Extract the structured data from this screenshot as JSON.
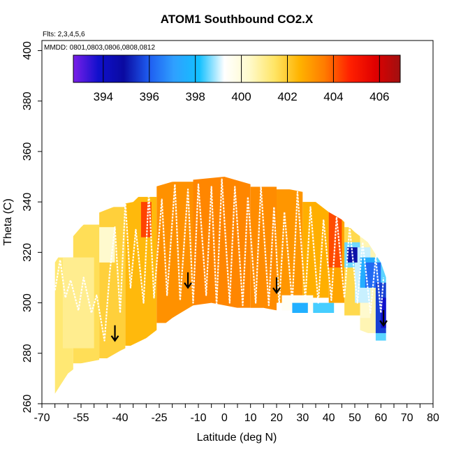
{
  "chart_data": {
    "type": "heatmap",
    "title": "ATOM1 Southbound CO2.X",
    "flights_label": "Flts: 2,3,4,5,6",
    "dates_label": "MMDD: 0801,0803,0806,0808,0812",
    "xlabel": "Latitude (deg N)",
    "ylabel": "Theta (C)",
    "xlim": [
      -70,
      80
    ],
    "ylim": [
      260,
      404
    ],
    "x_tick_labels": [
      "-70",
      "-55",
      "-40",
      "-25",
      "-10",
      "0",
      "10",
      "20",
      "30",
      "40",
      "50",
      "60",
      "70",
      "80"
    ],
    "y_tick_labels": [
      "260",
      "280",
      "300",
      "320",
      "340",
      "360",
      "380",
      "400"
    ],
    "colorbar": {
      "range": [
        392.7,
        406.9
      ],
      "tick_labels": [
        "394",
        "396",
        "398",
        "400",
        "402",
        "404",
        "406"
      ],
      "colors": [
        "#7a1fe8",
        "#1010cc",
        "#0a0aa0",
        "#1e5cf0",
        "#2fa0ff",
        "#12c0ff",
        "#ffffff",
        "#fffacc",
        "#ffe566",
        "#ffb300",
        "#ff7b00",
        "#ff2000",
        "#e00000",
        "#a01010"
      ]
    },
    "field_outline": {
      "top": [
        [
          -65,
          316
        ],
        [
          -60,
          324
        ],
        [
          -55,
          330
        ],
        [
          -50,
          335
        ],
        [
          -45,
          337
        ],
        [
          -40,
          339
        ],
        [
          -35,
          340
        ],
        [
          -30,
          345
        ],
        [
          -20,
          348
        ],
        [
          -10,
          349
        ],
        [
          0,
          350
        ],
        [
          10,
          347
        ],
        [
          20,
          346
        ],
        [
          30,
          344
        ],
        [
          40,
          336
        ],
        [
          45,
          333
        ],
        [
          50,
          328
        ],
        [
          55,
          324
        ],
        [
          60,
          316
        ],
        [
          62,
          310
        ]
      ],
      "bottom": [
        [
          -65,
          264
        ],
        [
          -60,
          272
        ],
        [
          -55,
          276
        ],
        [
          -45,
          278
        ],
        [
          -40,
          281
        ],
        [
          -30,
          286
        ],
        [
          -20,
          294
        ],
        [
          -12,
          299
        ],
        [
          -5,
          300
        ],
        [
          5,
          298
        ],
        [
          15,
          298
        ],
        [
          20,
          297
        ],
        [
          25,
          296
        ],
        [
          30,
          294
        ],
        [
          40,
          292
        ],
        [
          50,
          290
        ],
        [
          55,
          288
        ],
        [
          58,
          285
        ],
        [
          62,
          285
        ]
      ]
    },
    "cells": [
      {
        "lat": [
          -66,
          -58
        ],
        "theta": [
          264,
          318
        ],
        "value": 401.3
      },
      {
        "lat": [
          -58,
          -48
        ],
        "theta": [
          276,
          331
        ],
        "value": 401.6
      },
      {
        "lat": [
          -48,
          -38
        ],
        "theta": [
          278,
          338
        ],
        "value": 401.9
      },
      {
        "lat": [
          -38,
          -26
        ],
        "theta": [
          283,
          342
        ],
        "value": 402.4
      },
      {
        "lat": [
          -26,
          -12
        ],
        "theta": [
          292,
          348
        ],
        "value": 403.2
      },
      {
        "lat": [
          -12,
          10
        ],
        "theta": [
          298,
          350
        ],
        "value": 403.4
      },
      {
        "lat": [
          10,
          20
        ],
        "theta": [
          297,
          346
        ],
        "value": 403.3
      },
      {
        "lat": [
          20,
          30
        ],
        "theta": [
          300,
          345
        ],
        "value": 403.1
      },
      {
        "lat": [
          30,
          40
        ],
        "theta": [
          302,
          340
        ],
        "value": 402.6
      },
      {
        "lat": [
          40,
          46
        ],
        "theta": [
          300,
          336
        ],
        "value": 402.8
      },
      {
        "lat": [
          46,
          52
        ],
        "theta": [
          295,
          330
        ],
        "value": 401.7
      },
      {
        "lat": [
          52,
          58
        ],
        "theta": [
          288,
          326
        ],
        "value": 400.6
      },
      {
        "lat": [
          58,
          62
        ],
        "theta": [
          285,
          318
        ],
        "value": 398.5
      },
      {
        "lat": [
          -62,
          -50
        ],
        "theta": [
          282,
          318
        ],
        "value": 401.0
      },
      {
        "lat": [
          -48,
          -42
        ],
        "theta": [
          316,
          330
        ],
        "value": 400.3
      },
      {
        "lat": [
          -32,
          -28
        ],
        "theta": [
          326,
          340
        ],
        "value": 404.3
      },
      {
        "lat": [
          22,
          34
        ],
        "theta": [
          297,
          303
        ],
        "value": 399.5
      },
      {
        "lat": [
          26,
          32
        ],
        "theta": [
          296,
          300
        ],
        "value": 397.6
      },
      {
        "lat": [
          34,
          42
        ],
        "theta": [
          296,
          300
        ],
        "value": 398.4
      },
      {
        "lat": [
          40,
          45
        ],
        "theta": [
          314,
          336
        ],
        "value": 404.2
      },
      {
        "lat": [
          46,
          52
        ],
        "theta": [
          314,
          324
        ],
        "value": 398.6
      },
      {
        "lat": [
          50,
          56
        ],
        "theta": [
          300,
          322
        ],
        "value": 399.0
      },
      {
        "lat": [
          52,
          58
        ],
        "theta": [
          306,
          318
        ],
        "value": 397.5
      },
      {
        "lat": [
          54,
          60
        ],
        "theta": [
          306,
          316
        ],
        "value": 396.2
      },
      {
        "lat": [
          58,
          62
        ],
        "theta": [
          288,
          308
        ],
        "value": 395.6
      },
      {
        "lat": [
          60,
          62
        ],
        "theta": [
          290,
          302
        ],
        "value": 393.8
      },
      {
        "lat": [
          47,
          51
        ],
        "theta": [
          316,
          322
        ],
        "value": 395.0
      },
      {
        "lat": [
          52,
          56
        ],
        "theta": [
          294,
          300
        ],
        "value": 400.3
      }
    ],
    "flight_track": [
      [
        -65,
        305
      ],
      [
        -63,
        317
      ],
      [
        -61,
        302
      ],
      [
        -59,
        309
      ],
      [
        -56,
        297
      ],
      [
        -54,
        310
      ],
      [
        -51,
        296
      ],
      [
        -49,
        303
      ],
      [
        -46,
        285
      ],
      [
        -44,
        312
      ],
      [
        -42,
        330
      ],
      [
        -40,
        296
      ],
      [
        -38,
        340
      ],
      [
        -36,
        306
      ],
      [
        -34,
        329
      ],
      [
        -31,
        300
      ],
      [
        -29,
        344
      ],
      [
        -27,
        302
      ],
      [
        -24,
        341
      ],
      [
        -22,
        303
      ],
      [
        -19,
        347
      ],
      [
        -17,
        301
      ],
      [
        -14,
        345
      ],
      [
        -12,
        300
      ],
      [
        -10,
        347
      ],
      [
        -7,
        303
      ],
      [
        -5,
        346
      ],
      [
        -3,
        299
      ],
      [
        -1,
        349
      ],
      [
        2,
        300
      ],
      [
        4,
        346
      ],
      [
        7,
        299
      ],
      [
        9,
        342
      ],
      [
        12,
        300
      ],
      [
        14,
        346
      ],
      [
        17,
        299
      ],
      [
        19,
        338
      ],
      [
        21,
        299
      ],
      [
        23,
        336
      ],
      [
        26,
        300
      ],
      [
        28,
        344
      ],
      [
        31,
        301
      ],
      [
        33,
        338
      ],
      [
        36,
        300
      ],
      [
        38,
        333
      ],
      [
        41,
        301
      ],
      [
        43,
        334
      ],
      [
        46,
        302
      ],
      [
        48,
        330
      ],
      [
        51,
        300
      ],
      [
        53,
        324
      ],
      [
        56,
        296
      ],
      [
        58,
        318
      ],
      [
        60,
        296
      ],
      [
        61,
        310
      ]
    ],
    "arrows": [
      [
        -42,
        285
      ],
      [
        -14,
        306
      ],
      [
        20,
        304
      ],
      [
        61,
        291
      ]
    ]
  }
}
